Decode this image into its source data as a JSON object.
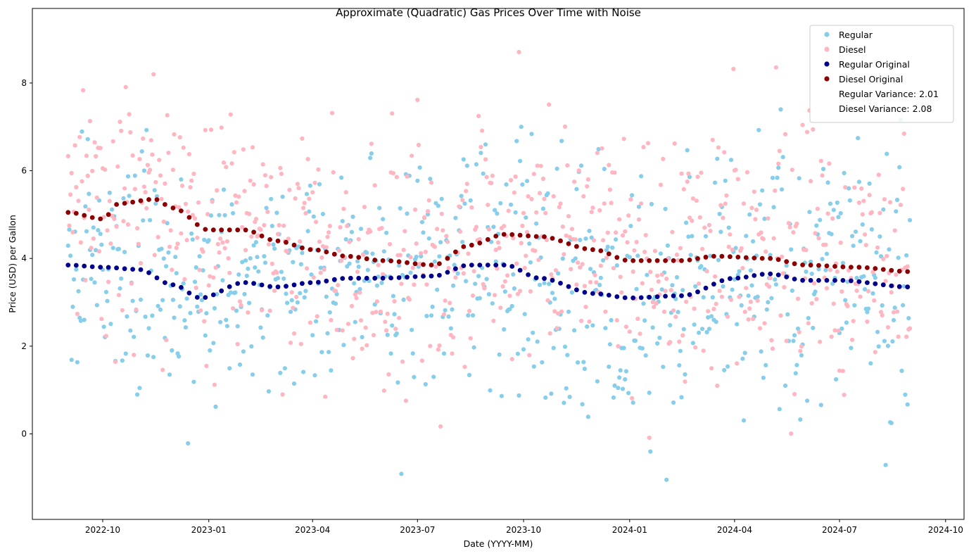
{
  "chart_data": {
    "type": "scatter",
    "title": "Approximate (Quadratic) Gas Prices Over Time with Noise",
    "xlabel": "Date (YYYY-MM)",
    "ylabel": "Price (USD) per Gallon",
    "x_range": [
      "2022-08-01",
      "2024-10-17"
    ],
    "ylim": [
      -1.95,
      9.7
    ],
    "grid": false,
    "legend_position": "top-right",
    "x_ticks": [
      "2022-10",
      "2023-01",
      "2023-04",
      "2023-07",
      "2023-10",
      "2024-01",
      "2024-04",
      "2024-07",
      "2024-10"
    ],
    "y_ticks": [
      0,
      2,
      4,
      6,
      8
    ],
    "legend": {
      "entries": [
        "Regular",
        "Diesel",
        "Regular Original",
        "Diesel Original"
      ],
      "notes": [
        "Regular Variance: 2.01",
        "Diesel Variance: 2.08"
      ]
    },
    "series": [
      {
        "name": "Regular",
        "color": "#87ceeb",
        "noise_variance": 2.01,
        "x_start": "2022-09-01",
        "x_end": "2024-08-31",
        "n_points": 731,
        "trend": [
          [
            "2022-09-01",
            3.85
          ],
          [
            "2022-10-01",
            3.8
          ],
          [
            "2022-11-01",
            3.75
          ],
          [
            "2022-12-01",
            3.4
          ],
          [
            "2022-12-25",
            3.1
          ],
          [
            "2023-02-01",
            3.45
          ],
          [
            "2023-03-01",
            3.35
          ],
          [
            "2023-04-01",
            3.45
          ],
          [
            "2023-05-01",
            3.55
          ],
          [
            "2023-06-01",
            3.55
          ],
          [
            "2023-07-15",
            3.6
          ],
          [
            "2023-08-15",
            3.85
          ],
          [
            "2023-09-15",
            3.85
          ],
          [
            "2023-10-15",
            3.55
          ],
          [
            "2023-12-01",
            3.2
          ],
          [
            "2024-01-01",
            3.1
          ],
          [
            "2024-02-15",
            3.15
          ],
          [
            "2024-04-01",
            3.55
          ],
          [
            "2024-05-01",
            3.65
          ],
          [
            "2024-06-01",
            3.5
          ],
          [
            "2024-07-01",
            3.5
          ],
          [
            "2024-08-31",
            3.35
          ]
        ]
      },
      {
        "name": "Diesel",
        "color": "#ffb6c1",
        "noise_variance": 2.08,
        "x_start": "2022-09-01",
        "x_end": "2024-08-31",
        "n_points": 731,
        "trend": [
          [
            "2022-09-01",
            5.05
          ],
          [
            "2022-10-01",
            4.9
          ],
          [
            "2022-10-15",
            5.25
          ],
          [
            "2022-11-15",
            5.35
          ],
          [
            "2022-12-01",
            5.15
          ],
          [
            "2023-01-01",
            4.65
          ],
          [
            "2023-02-01",
            4.65
          ],
          [
            "2023-03-01",
            4.4
          ],
          [
            "2023-04-01",
            4.2
          ],
          [
            "2023-05-01",
            4.05
          ],
          [
            "2023-06-01",
            3.95
          ],
          [
            "2023-07-15",
            3.85
          ],
          [
            "2023-08-15",
            4.3
          ],
          [
            "2023-09-15",
            4.55
          ],
          [
            "2023-10-15",
            4.5
          ],
          [
            "2023-12-01",
            4.2
          ],
          [
            "2024-01-01",
            3.95
          ],
          [
            "2024-02-15",
            3.95
          ],
          [
            "2024-03-15",
            4.05
          ],
          [
            "2024-05-01",
            4.0
          ],
          [
            "2024-06-01",
            3.85
          ],
          [
            "2024-07-15",
            3.8
          ],
          [
            "2024-08-31",
            3.7
          ]
        ]
      },
      {
        "name": "Regular Original",
        "color": "#00008b",
        "x_start": "2022-09-01",
        "x_end": "2024-08-31",
        "step_days": 7
      },
      {
        "name": "Diesel Original",
        "color": "#8b0000",
        "x_start": "2022-09-01",
        "x_end": "2024-08-31",
        "step_days": 7
      }
    ]
  }
}
